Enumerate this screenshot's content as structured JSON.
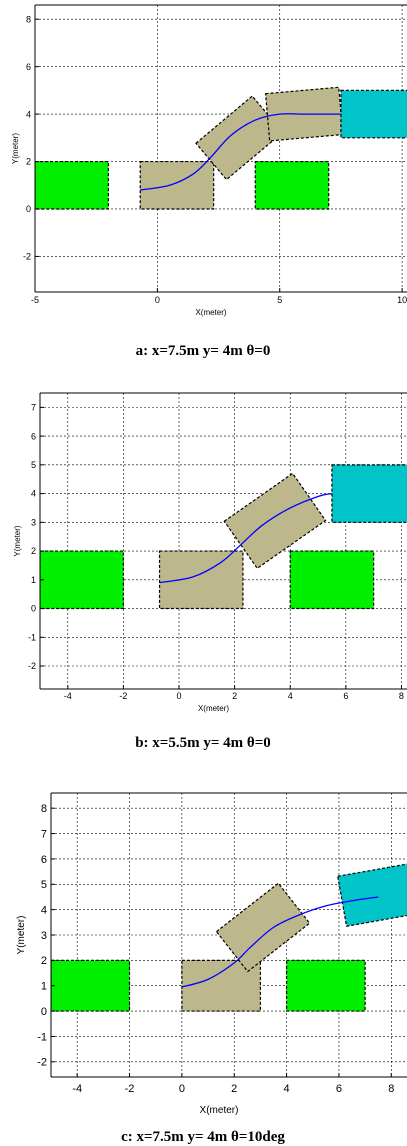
{
  "colors": {
    "obstacle": "#00f000",
    "car": "#bdb88c",
    "goal": "#00c4c8",
    "path": "#0000ff"
  },
  "chart_data": [
    {
      "type": "line",
      "caption": "a:  x=7.5m y= 4m θ=0",
      "xlabel": "X(meter)",
      "ylabel": "Y(meter)",
      "xlim": [
        -5,
        10.2
      ],
      "ylim": [
        -3.5,
        8.6
      ],
      "xticks": [
        -5,
        0,
        5,
        10
      ],
      "yticks": [
        -2,
        0,
        2,
        4,
        6,
        8
      ],
      "grid": true,
      "obstacles": [
        {
          "cx": -3.5,
          "cy": 1,
          "w": 3,
          "h": 2,
          "angle": 0
        },
        {
          "cx": 5.5,
          "cy": 1,
          "w": 3,
          "h": 2,
          "angle": 0
        }
      ],
      "car_positions": [
        {
          "cx": 0.8,
          "cy": 1,
          "w": 3,
          "h": 2,
          "angle": 0
        },
        {
          "cx": 3.35,
          "cy": 3.0,
          "w": 3,
          "h": 2,
          "angle": 40
        },
        {
          "cx": 6.0,
          "cy": 4.0,
          "w": 3,
          "h": 2,
          "angle": 5
        }
      ],
      "goal": {
        "cx": 9.0,
        "cy": 4.0,
        "w": 3,
        "h": 2,
        "angle": 0
      },
      "path": {
        "x": [
          -0.7,
          0.5,
          1.5,
          2.2,
          3.0,
          4.0,
          5.0,
          6.0,
          7.5
        ],
        "y": [
          0.8,
          1.0,
          1.5,
          2.2,
          3.1,
          3.75,
          4.0,
          4.0,
          4.0
        ]
      }
    },
    {
      "type": "line",
      "caption": "b:  x=5.5m y= 4m θ=0",
      "xlabel": "X(meter)",
      "ylabel": "Y(meter)",
      "xlim": [
        -5,
        8.2
      ],
      "ylim": [
        -2.8,
        7.5
      ],
      "xticks": [
        -4,
        -2,
        0,
        2,
        4,
        6,
        8
      ],
      "yticks": [
        -2,
        -1,
        0,
        1,
        2,
        3,
        4,
        5,
        6,
        7
      ],
      "grid": true,
      "obstacles": [
        {
          "cx": -3.5,
          "cy": 1,
          "w": 3,
          "h": 2,
          "angle": 0
        },
        {
          "cx": 5.5,
          "cy": 1,
          "w": 3,
          "h": 2,
          "angle": 0
        }
      ],
      "car_positions": [
        {
          "cx": 0.8,
          "cy": 1,
          "w": 3,
          "h": 2,
          "angle": 0
        },
        {
          "cx": 3.45,
          "cy": 3.05,
          "w": 3,
          "h": 2,
          "angle": 35
        }
      ],
      "goal": {
        "cx": 7.0,
        "cy": 4.0,
        "w": 3,
        "h": 2,
        "angle": 0
      },
      "path": {
        "x": [
          -0.7,
          0.5,
          1.5,
          2.2,
          3.0,
          4.0,
          5.0,
          5.5
        ],
        "y": [
          0.9,
          1.1,
          1.6,
          2.2,
          2.9,
          3.5,
          3.9,
          4.0
        ]
      }
    },
    {
      "type": "line",
      "caption": "c:  x=7.5m y= 4m θ=10deg",
      "xlabel": "X(meter)",
      "ylabel": "Y(meter)",
      "xlim": [
        -5,
        8.6
      ],
      "ylim": [
        -2.6,
        8.6
      ],
      "xticks": [
        -4,
        -2,
        0,
        2,
        4,
        6,
        8
      ],
      "yticks": [
        -2,
        -1,
        0,
        1,
        2,
        3,
        4,
        5,
        6,
        7,
        8
      ],
      "grid": true,
      "obstacles": [
        {
          "cx": -3.5,
          "cy": 1,
          "w": 3,
          "h": 2,
          "angle": 0
        },
        {
          "cx": 5.5,
          "cy": 1,
          "w": 3,
          "h": 2,
          "angle": 0
        }
      ],
      "car_positions": [
        {
          "cx": 1.5,
          "cy": 1,
          "w": 3,
          "h": 2,
          "angle": 0
        },
        {
          "cx": 3.1,
          "cy": 3.3,
          "w": 3,
          "h": 2,
          "angle": 38
        }
      ],
      "goal": {
        "cx": 7.6,
        "cy": 4.6,
        "w": 3,
        "h": 2,
        "angle": 10
      },
      "path": {
        "x": [
          0,
          1.0,
          2.0,
          2.6,
          3.5,
          4.5,
          5.5,
          6.5,
          7.5
        ],
        "y": [
          0.95,
          1.25,
          1.9,
          2.5,
          3.3,
          3.8,
          4.15,
          4.35,
          4.5
        ]
      }
    }
  ]
}
